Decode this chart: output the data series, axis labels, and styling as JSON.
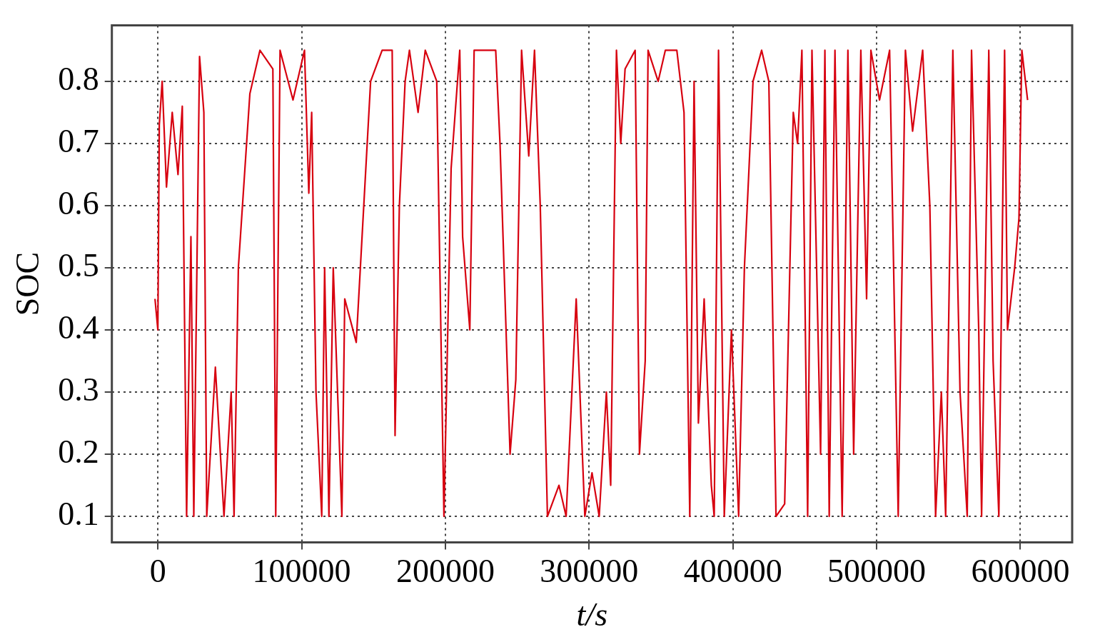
{
  "chart_data": {
    "type": "line",
    "xlabel": "t/s",
    "ylabel": "SOC",
    "xlim": [
      -32000,
      636000
    ],
    "ylim": [
      0.058,
      0.89
    ],
    "xticks": [
      0,
      100000,
      200000,
      300000,
      400000,
      500000,
      600000
    ],
    "yticks": [
      0.1,
      0.2,
      0.3,
      0.4,
      0.5,
      0.6,
      0.7,
      0.8
    ],
    "grid": true,
    "legend": false,
    "marker": "none",
    "line_style": "solid",
    "series": [
      {
        "color": "#d7000f",
        "x": [
          -2000,
          0,
          1000,
          3000,
          6000,
          10000,
          14000,
          17000,
          20000,
          23000,
          25000,
          29000,
          32000,
          34000,
          40000,
          46000,
          51000,
          53000,
          56000,
          64000,
          71000,
          80000,
          82000,
          85000,
          94000,
          102000,
          105000,
          107000,
          110000,
          114000,
          116000,
          119000,
          122000,
          128000,
          130000,
          138000,
          148000,
          156000,
          163000,
          165000,
          168000,
          172000,
          175000,
          181000,
          186000,
          194000,
          199000,
          204000,
          210000,
          212000,
          217000,
          220000,
          230000,
          235000,
          238000,
          245000,
          249000,
          253000,
          258000,
          262000,
          266000,
          271000,
          279000,
          284000,
          291000,
          297000,
          302000,
          307000,
          312000,
          315000,
          319000,
          322000,
          325000,
          332000,
          335000,
          339000,
          341000,
          348000,
          353000,
          361000,
          366000,
          370000,
          373000,
          376000,
          380000,
          385000,
          387000,
          390000,
          394000,
          399000,
          404000,
          408000,
          414000,
          420000,
          425000,
          430000,
          436000,
          442000,
          445000,
          448000,
          452000,
          455000,
          461000,
          464000,
          467000,
          471000,
          476000,
          480000,
          484000,
          489000,
          493000,
          496000,
          502000,
          509000,
          515000,
          520000,
          525000,
          532000,
          537000,
          541000,
          545000,
          548000,
          553000,
          558000,
          563000,
          566000,
          571000,
          573000,
          578000,
          581000,
          585000,
          589000,
          591000,
          596000,
          599000,
          601000,
          605000
        ],
        "values": [
          0.45,
          0.4,
          0.73,
          0.8,
          0.63,
          0.75,
          0.65,
          0.76,
          0.1,
          0.55,
          0.1,
          0.84,
          0.75,
          0.1,
          0.34,
          0.1,
          0.3,
          0.1,
          0.5,
          0.78,
          0.85,
          0.82,
          0.1,
          0.85,
          0.77,
          0.85,
          0.62,
          0.75,
          0.3,
          0.1,
          0.5,
          0.1,
          0.5,
          0.1,
          0.45,
          0.38,
          0.8,
          0.85,
          0.85,
          0.23,
          0.6,
          0.8,
          0.85,
          0.75,
          0.85,
          0.8,
          0.1,
          0.66,
          0.85,
          0.55,
          0.4,
          0.85,
          0.85,
          0.85,
          0.7,
          0.2,
          0.32,
          0.85,
          0.68,
          0.85,
          0.6,
          0.1,
          0.15,
          0.1,
          0.45,
          0.1,
          0.17,
          0.1,
          0.3,
          0.15,
          0.85,
          0.7,
          0.82,
          0.85,
          0.2,
          0.35,
          0.85,
          0.8,
          0.85,
          0.85,
          0.75,
          0.1,
          0.8,
          0.25,
          0.45,
          0.15,
          0.1,
          0.85,
          0.1,
          0.4,
          0.1,
          0.5,
          0.8,
          0.85,
          0.8,
          0.1,
          0.12,
          0.75,
          0.7,
          0.85,
          0.1,
          0.85,
          0.2,
          0.85,
          0.1,
          0.85,
          0.1,
          0.85,
          0.2,
          0.85,
          0.45,
          0.85,
          0.77,
          0.85,
          0.1,
          0.85,
          0.72,
          0.85,
          0.6,
          0.1,
          0.3,
          0.1,
          0.85,
          0.3,
          0.1,
          0.85,
          0.4,
          0.1,
          0.85,
          0.35,
          0.1,
          0.85,
          0.4,
          0.5,
          0.58,
          0.85,
          0.77
        ]
      }
    ]
  }
}
